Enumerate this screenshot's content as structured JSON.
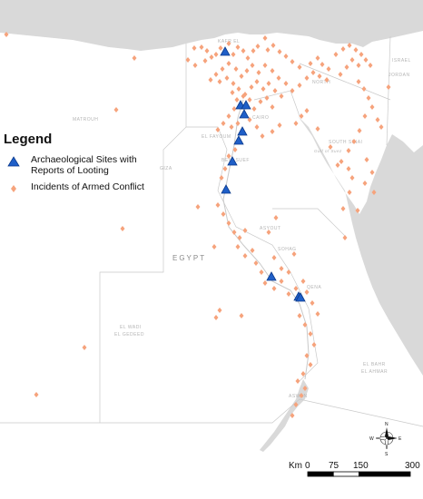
{
  "legend": {
    "title": "Legend",
    "items": [
      {
        "key": "archaeological-sites",
        "label_line1": "Archaeological Sites with",
        "label_line2": "Reports of Looting",
        "color": "#1f5fc8",
        "icon": "blue-triangle"
      },
      {
        "key": "armed-conflict",
        "label": "Incidents of Armed Conflict",
        "color": "#f6a37c",
        "icon": "orange-diamond"
      }
    ]
  },
  "colors": {
    "sea": "#d9d9d9",
    "land": "#ffffff",
    "border": "#c9c9c9",
    "nile": "#c9c9c9",
    "place_label": "#b5b5b5",
    "country_label": "#8a8a8a"
  },
  "country_label": "EGYPT",
  "place_labels": {
    "matruh": "MATROUH",
    "giza": "GIZA",
    "cairo": "CAIRO",
    "north_sinai": "NORTH",
    "south_sinai": "SOUTH SINAI",
    "el_fayoum": "EL FAYOUM",
    "beni_suef": "BENI SUEF",
    "asyout": "ASYOUT",
    "sohag": "SOHAG",
    "qena": "QENA",
    "new_valley_1": "EL WADI",
    "new_valley_2": "EL GEDEED",
    "red_sea_1": "EL BAHR",
    "red_sea_2": "EL AHMAR",
    "aswan": "ASWAN",
    "israel": "ISRAEL",
    "jordan": "JORDAN",
    "gulf_of_suez": "Gulf of Suez",
    "kafr_el": "KAFR EL"
  },
  "compass": {
    "n": "N",
    "s": "S",
    "e": "E",
    "w": "W"
  },
  "scale_bar": {
    "unit": "Km",
    "ticks": [
      {
        "label": "0",
        "km": 0
      },
      {
        "label": "75",
        "km": 75
      },
      {
        "label": "150",
        "km": 150
      },
      {
        "label": "300",
        "km": 300
      }
    ]
  },
  "archaeological_sites": [
    [
      248,
      57
    ],
    [
      265,
      116
    ],
    [
      271,
      116
    ],
    [
      269,
      126
    ],
    [
      267,
      145
    ],
    [
      263,
      155
    ],
    [
      256,
      178
    ],
    [
      249,
      209
    ],
    [
      299,
      305
    ],
    [
      329,
      327
    ],
    [
      331,
      328
    ]
  ],
  "armed_conflict_incidents": [
    [
      7,
      38
    ],
    [
      148,
      64
    ],
    [
      128,
      121
    ],
    [
      214,
      53
    ],
    [
      222,
      52
    ],
    [
      228,
      56
    ],
    [
      207,
      66
    ],
    [
      215,
      72
    ],
    [
      226,
      67
    ],
    [
      233,
      63
    ],
    [
      238,
      60
    ],
    [
      243,
      53
    ],
    [
      252,
      48
    ],
    [
      257,
      60
    ],
    [
      262,
      52
    ],
    [
      268,
      56
    ],
    [
      273,
      64
    ],
    [
      279,
      56
    ],
    [
      284,
      51
    ],
    [
      292,
      42
    ],
    [
      295,
      55
    ],
    [
      301,
      50
    ],
    [
      308,
      57
    ],
    [
      315,
      62
    ],
    [
      322,
      68
    ],
    [
      330,
      74
    ],
    [
      342,
      70
    ],
    [
      350,
      64
    ],
    [
      355,
      71
    ],
    [
      362,
      76
    ],
    [
      370,
      60
    ],
    [
      378,
      54
    ],
    [
      385,
      50
    ],
    [
      392,
      55
    ],
    [
      398,
      60
    ],
    [
      403,
      66
    ],
    [
      408,
      72
    ],
    [
      395,
      72
    ],
    [
      388,
      66
    ],
    [
      382,
      74
    ],
    [
      375,
      82
    ],
    [
      360,
      88
    ],
    [
      352,
      84
    ],
    [
      345,
      80
    ],
    [
      338,
      86
    ],
    [
      330,
      94
    ],
    [
      322,
      100
    ],
    [
      315,
      92
    ],
    [
      307,
      86
    ],
    [
      300,
      78
    ],
    [
      292,
      72
    ],
    [
      285,
      80
    ],
    [
      278,
      72
    ],
    [
      272,
      78
    ],
    [
      266,
      84
    ],
    [
      260,
      76
    ],
    [
      252,
      70
    ],
    [
      245,
      76
    ],
    [
      238,
      82
    ],
    [
      232,
      88
    ],
    [
      242,
      90
    ],
    [
      250,
      86
    ],
    [
      257,
      92
    ],
    [
      263,
      98
    ],
    [
      270,
      104
    ],
    [
      277,
      96
    ],
    [
      283,
      90
    ],
    [
      290,
      98
    ],
    [
      296,
      92
    ],
    [
      303,
      100
    ],
    [
      310,
      106
    ],
    [
      275,
      110
    ],
    [
      268,
      106
    ],
    [
      261,
      110
    ],
    [
      256,
      102
    ],
    [
      280,
      120
    ],
    [
      287,
      112
    ],
    [
      294,
      108
    ],
    [
      300,
      118
    ],
    [
      258,
      120
    ],
    [
      252,
      128
    ],
    [
      246,
      136
    ],
    [
      240,
      143
    ],
    [
      255,
      140
    ],
    [
      262,
      136
    ],
    [
      275,
      132
    ],
    [
      283,
      140
    ],
    [
      289,
      150
    ],
    [
      300,
      145
    ],
    [
      308,
      138
    ],
    [
      326,
      136
    ],
    [
      332,
      128
    ],
    [
      338,
      122
    ],
    [
      395,
      90
    ],
    [
      401,
      98
    ],
    [
      406,
      108
    ],
    [
      410,
      118
    ],
    [
      420,
      140
    ],
    [
      428,
      96
    ],
    [
      416,
      132
    ],
    [
      402,
      128
    ],
    [
      396,
      144
    ],
    [
      390,
      156
    ],
    [
      384,
      166
    ],
    [
      376,
      178
    ],
    [
      384,
      186
    ],
    [
      404,
      176
    ],
    [
      410,
      190
    ],
    [
      402,
      202
    ],
    [
      412,
      212
    ],
    [
      388,
      196
    ],
    [
      372,
      182
    ],
    [
      364,
      162
    ],
    [
      350,
      142
    ],
    [
      259,
      165
    ],
    [
      252,
      172
    ],
    [
      248,
      186
    ],
    [
      244,
      196
    ],
    [
      240,
      226
    ],
    [
      246,
      236
    ],
    [
      252,
      246
    ],
    [
      258,
      256
    ],
    [
      264,
      262
    ],
    [
      270,
      254
    ],
    [
      262,
      272
    ],
    [
      270,
      282
    ],
    [
      278,
      276
    ],
    [
      282,
      290
    ],
    [
      288,
      300
    ],
    [
      292,
      312
    ],
    [
      302,
      318
    ],
    [
      310,
      310
    ],
    [
      318,
      324
    ],
    [
      326,
      318
    ],
    [
      334,
      310
    ],
    [
      338,
      322
    ],
    [
      344,
      334
    ],
    [
      350,
      346
    ],
    [
      330,
      348
    ],
    [
      336,
      358
    ],
    [
      342,
      368
    ],
    [
      346,
      380
    ],
    [
      338,
      392
    ],
    [
      342,
      402
    ],
    [
      334,
      412
    ],
    [
      332,
      436
    ],
    [
      326,
      446
    ],
    [
      322,
      458
    ],
    [
      336,
      428
    ],
    [
      328,
      420
    ],
    [
      236,
      272
    ],
    [
      238,
      350
    ],
    [
      242,
      342
    ],
    [
      266,
      348
    ],
    [
      135,
      252
    ],
    [
      218,
      228
    ],
    [
      93,
      383
    ],
    [
      40,
      435
    ],
    [
      380,
      262
    ],
    [
      378,
      230
    ],
    [
      385,
      212
    ],
    [
      394,
      232
    ],
    [
      296,
      256
    ],
    [
      302,
      284
    ],
    [
      310,
      296
    ],
    [
      318,
      300
    ],
    [
      304,
      240
    ],
    [
      324,
      280
    ]
  ]
}
